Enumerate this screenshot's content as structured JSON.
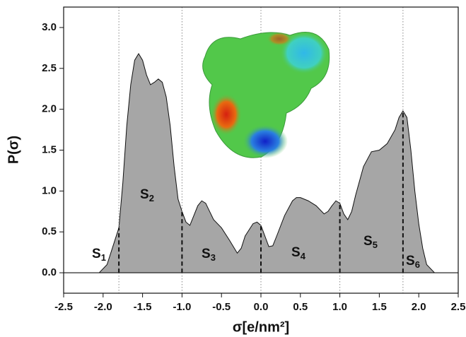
{
  "chart_data": {
    "type": "area",
    "x_label": "σ[e/nm²]",
    "y_label": "P(σ)",
    "x": [
      -2.05,
      -1.95,
      -1.85,
      -1.8,
      -1.75,
      -1.7,
      -1.65,
      -1.6,
      -1.55,
      -1.5,
      -1.45,
      -1.4,
      -1.35,
      -1.3,
      -1.25,
      -1.2,
      -1.15,
      -1.1,
      -1.05,
      -1.0,
      -0.95,
      -0.9,
      -0.85,
      -0.8,
      -0.75,
      -0.7,
      -0.65,
      -0.6,
      -0.5,
      -0.4,
      -0.3,
      -0.25,
      -0.2,
      -0.1,
      -0.05,
      0.0,
      0.05,
      0.1,
      0.15,
      0.2,
      0.3,
      0.4,
      0.45,
      0.5,
      0.6,
      0.7,
      0.8,
      0.85,
      0.9,
      0.95,
      1.0,
      1.05,
      1.1,
      1.15,
      1.2,
      1.3,
      1.4,
      1.5,
      1.6,
      1.7,
      1.75,
      1.8,
      1.85,
      1.9,
      1.95,
      2.0,
      2.05,
      2.1,
      2.2
    ],
    "series": [
      {
        "color": "#a6a6a6",
        "values": [
          0,
          0.1,
          0.4,
          0.55,
          1.1,
          1.8,
          2.3,
          2.6,
          2.68,
          2.6,
          2.42,
          2.3,
          2.33,
          2.37,
          2.33,
          2.15,
          1.8,
          1.3,
          0.9,
          0.75,
          0.62,
          0.58,
          0.7,
          0.82,
          0.88,
          0.85,
          0.75,
          0.65,
          0.55,
          0.4,
          0.24,
          0.3,
          0.45,
          0.6,
          0.62,
          0.58,
          0.45,
          0.32,
          0.33,
          0.45,
          0.7,
          0.88,
          0.92,
          0.92,
          0.88,
          0.82,
          0.72,
          0.75,
          0.82,
          0.88,
          0.85,
          0.72,
          0.65,
          0.75,
          0.95,
          1.3,
          1.48,
          1.5,
          1.58,
          1.75,
          1.9,
          1.98,
          1.9,
          1.5,
          1.0,
          0.6,
          0.3,
          0.1,
          0
        ]
      }
    ],
    "dividers": [
      -1.8,
      -1.0,
      0,
      1.0,
      1.8
    ],
    "segments": [
      {
        "label": "S",
        "sub": "1"
      },
      {
        "label": "S",
        "sub": "2"
      },
      {
        "label": "S",
        "sub": "3"
      },
      {
        "label": "S",
        "sub": "4"
      },
      {
        "label": "S",
        "sub": "5"
      },
      {
        "label": "S",
        "sub": "6"
      }
    ],
    "xlim": [
      -2.5,
      2.5
    ],
    "xticks": [
      -2.5,
      {
        "value": -2,
        "label": "-2.0"
      },
      -1.5,
      {
        "value": -1,
        "label": "-1.0"
      },
      -0.5,
      {
        "value": 0,
        "label": "0.0"
      },
      0.5,
      {
        "value": 1,
        "label": "1.0"
      },
      1.5,
      {
        "value": 2,
        "label": "2.0"
      },
      2.5
    ],
    "ylim": [
      -0.25,
      3.25
    ],
    "yticks": [
      {
        "value": 0,
        "label": "0.0"
      },
      0.5,
      {
        "value": 1,
        "label": "1.0"
      },
      1.5,
      {
        "value": 2,
        "label": "2.0"
      },
      2.5,
      {
        "value": 3,
        "label": "3.0"
      }
    ]
  }
}
